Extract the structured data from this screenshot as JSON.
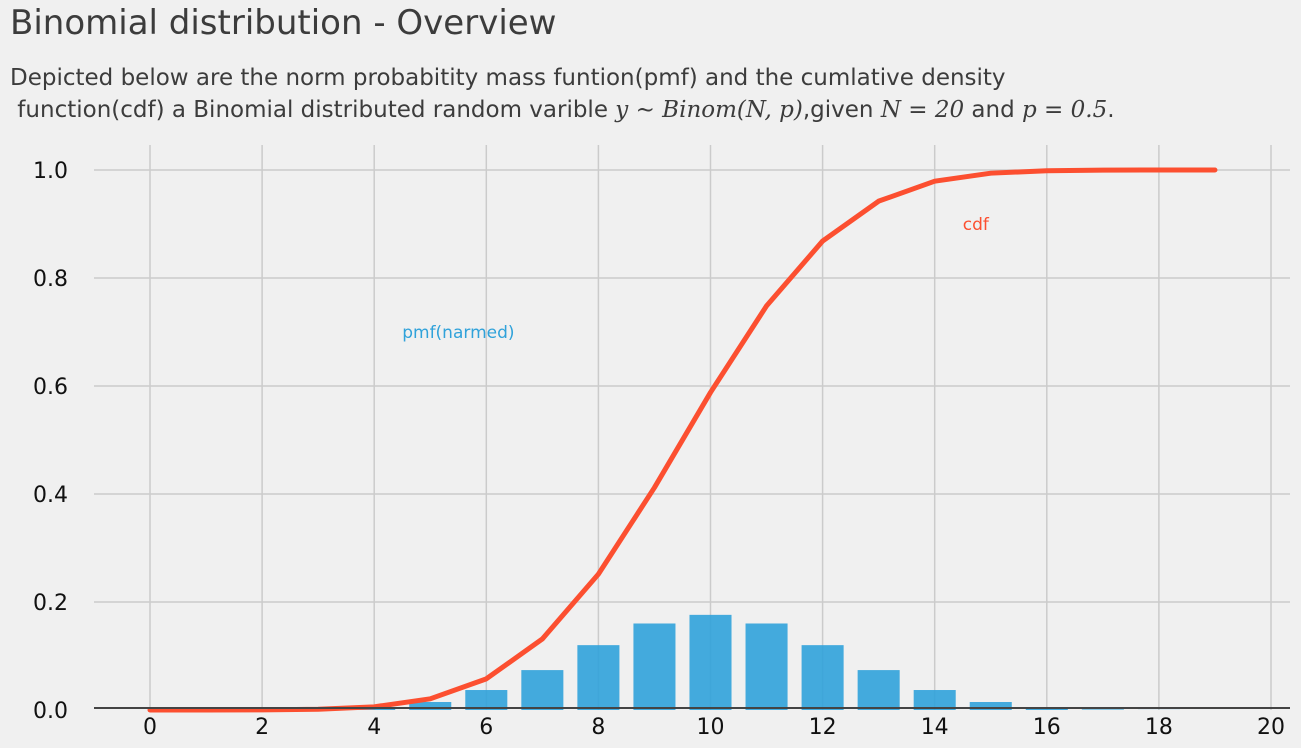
{
  "title": "Binomial distribution - Overview",
  "subtitle": {
    "line1": "Depicted below are the norm probabitity mass funtion(pmf) and the cumlative density",
    "line2_prefix": " function(cdf) a Binomial distributed random varible ",
    "line2_math1": "y ∼ Binom(N, p)",
    "line2_mid1": ",given ",
    "line2_math2": "N = 20",
    "line2_mid2": " and ",
    "line2_math3": "p = 0.5",
    "line2_suffix": "."
  },
  "colors": {
    "background": "#f0f0f0",
    "grid": "#cbcbcb",
    "baseline": "#444444",
    "pmf": "#30a2da",
    "cdf": "#fc4f30",
    "text": "#3c3c3c"
  },
  "chart_data": {
    "type": "bar+line",
    "xlim": [
      -1,
      20.3
    ],
    "ylim": [
      0,
      1.05
    ],
    "xticks": [
      0,
      2,
      4,
      6,
      8,
      10,
      12,
      14,
      16,
      18,
      20
    ],
    "yticks": [
      0.0,
      0.2,
      0.4,
      0.6,
      0.8,
      1.0
    ],
    "xtick_labels": [
      "0",
      "2",
      "4",
      "6",
      "8",
      "10",
      "12",
      "14",
      "16",
      "18",
      "20"
    ],
    "ytick_labels": [
      "0.0",
      "0.2",
      "0.4",
      "0.6",
      "0.8",
      "1.0"
    ],
    "grid": true,
    "series": [
      {
        "name": "pmf(narmed)",
        "kind": "bar",
        "x": [
          1,
          2,
          3,
          4,
          5,
          6,
          7,
          8,
          9,
          10,
          11,
          12,
          13,
          14,
          15,
          16,
          17,
          18,
          19
        ],
        "values": [
          2e-05,
          0.0002,
          0.0011,
          0.0046,
          0.0148,
          0.037,
          0.0739,
          0.1201,
          0.1602,
          0.1762,
          0.1602,
          0.1201,
          0.0739,
          0.037,
          0.0148,
          0.0046,
          0.0011,
          0.0002,
          2e-05
        ]
      },
      {
        "name": "cdf",
        "kind": "line",
        "x": [
          0,
          1,
          2,
          3,
          4,
          5,
          6,
          7,
          8,
          9,
          10,
          11,
          12,
          13,
          14,
          15,
          16,
          17,
          18,
          19
        ],
        "values": [
          0.0,
          2e-05,
          0.0002,
          0.0013,
          0.0059,
          0.0207,
          0.0577,
          0.1316,
          0.2517,
          0.4119,
          0.5881,
          0.7483,
          0.8684,
          0.9423,
          0.9793,
          0.9941,
          0.9987,
          0.9998,
          1.0,
          1.0
        ]
      }
    ],
    "annotations": [
      {
        "text": "pmf(narmed)",
        "x": 4.5,
        "y": 0.7,
        "series": "pmf"
      },
      {
        "text": "cdf",
        "x": 14.5,
        "y": 0.9,
        "series": "cdf"
      }
    ]
  }
}
